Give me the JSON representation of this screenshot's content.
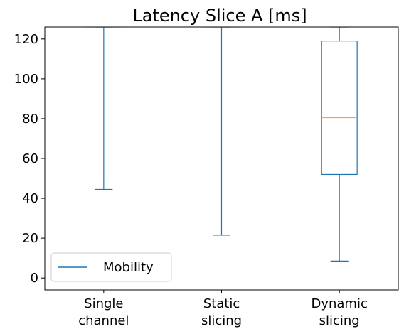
{
  "chart_data": {
    "type": "box",
    "title": "Latency Slice A [ms]",
    "xlabel": "",
    "ylabel": "",
    "ylim": [
      -6,
      126
    ],
    "yticks": [
      0,
      20,
      40,
      60,
      80,
      100,
      120
    ],
    "categories": [
      {
        "lines": [
          "Single",
          "channel"
        ]
      },
      {
        "lines": [
          "Static",
          "slicing"
        ]
      },
      {
        "lines": [
          "Dynamic",
          "slicing"
        ]
      }
    ],
    "series": [
      {
        "name": "Mobility",
        "color": "#1f77b4",
        "median_color": "#ff9f3a",
        "boxes": [
          {
            "whisker_low": 44.5,
            "q1": 126,
            "median": 126,
            "q3": 126,
            "whisker_high": 126
          },
          {
            "whisker_low": 21.5,
            "q1": 126,
            "median": 126,
            "q3": 126,
            "whisker_high": 126
          },
          {
            "whisker_low": 8.5,
            "q1": 52,
            "median": 80.5,
            "q3": 119,
            "whisker_high": 126
          }
        ]
      }
    ],
    "legend": {
      "position": "lower-left"
    },
    "grid": false
  }
}
